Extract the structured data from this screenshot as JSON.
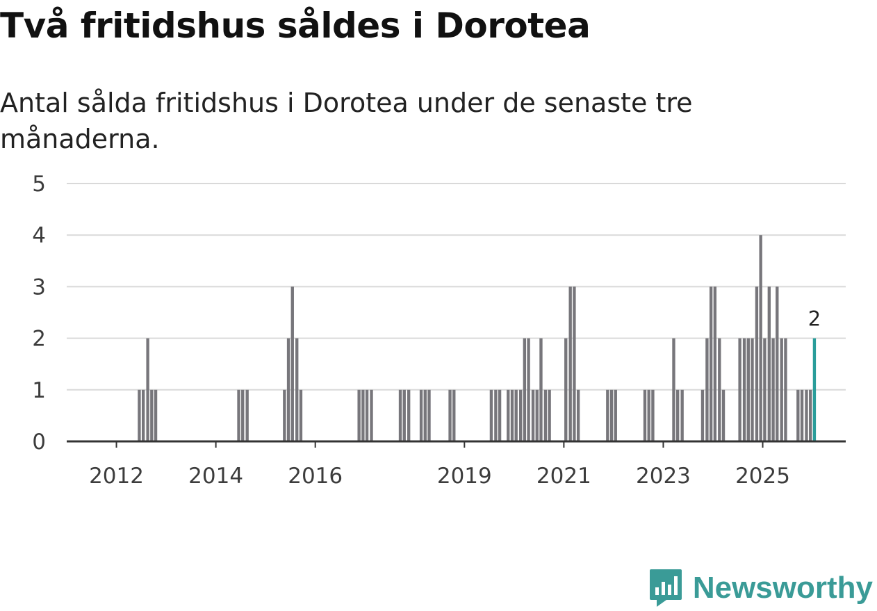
{
  "title": "Två fritidshus såldes i Dorotea",
  "subtitle": "Antal sålda fritidshus i Dorotea under de senaste tre månaderna.",
  "brand": {
    "name": "Newsworthy",
    "color": "#3a9b97"
  },
  "chart_data": {
    "type": "bar",
    "title": "Två fritidshus såldes i Dorotea",
    "ylabel": "",
    "xlabel": "",
    "ylim": [
      0,
      5
    ],
    "yticks": [
      0,
      1,
      2,
      3,
      4,
      5
    ],
    "xlim": [
      2011.0,
      2026.67
    ],
    "xticks": [
      {
        "label": "2012",
        "year": 2012
      },
      {
        "label": "2014",
        "year": 2014
      },
      {
        "label": "2016",
        "year": 2016
      },
      {
        "label": "2019",
        "year": 2019
      },
      {
        "label": "2021",
        "year": 2021
      },
      {
        "label": "2023",
        "year": 2023
      },
      {
        "label": "2025",
        "year": 2025
      }
    ],
    "bar_color": "#77767b",
    "highlight_color": "#2a9d9a",
    "highlight_label": "2",
    "bars": [
      {
        "t": 2012.46,
        "v": 1
      },
      {
        "t": 2012.54,
        "v": 1
      },
      {
        "t": 2012.63,
        "v": 2
      },
      {
        "t": 2012.71,
        "v": 1
      },
      {
        "t": 2012.79,
        "v": 1
      },
      {
        "t": 2014.46,
        "v": 1
      },
      {
        "t": 2014.54,
        "v": 1
      },
      {
        "t": 2014.63,
        "v": 1
      },
      {
        "t": 2015.38,
        "v": 1
      },
      {
        "t": 2015.46,
        "v": 2
      },
      {
        "t": 2015.54,
        "v": 3
      },
      {
        "t": 2015.63,
        "v": 2
      },
      {
        "t": 2015.71,
        "v": 1
      },
      {
        "t": 2016.88,
        "v": 1
      },
      {
        "t": 2016.96,
        "v": 1
      },
      {
        "t": 2017.04,
        "v": 1
      },
      {
        "t": 2017.13,
        "v": 1
      },
      {
        "t": 2017.71,
        "v": 1
      },
      {
        "t": 2017.79,
        "v": 1
      },
      {
        "t": 2017.88,
        "v": 1
      },
      {
        "t": 2018.13,
        "v": 1
      },
      {
        "t": 2018.21,
        "v": 1
      },
      {
        "t": 2018.29,
        "v": 1
      },
      {
        "t": 2018.71,
        "v": 1
      },
      {
        "t": 2018.79,
        "v": 1
      },
      {
        "t": 2019.54,
        "v": 1
      },
      {
        "t": 2019.63,
        "v": 1
      },
      {
        "t": 2019.71,
        "v": 1
      },
      {
        "t": 2019.88,
        "v": 1
      },
      {
        "t": 2019.96,
        "v": 1
      },
      {
        "t": 2020.04,
        "v": 1
      },
      {
        "t": 2020.13,
        "v": 1
      },
      {
        "t": 2020.21,
        "v": 2
      },
      {
        "t": 2020.29,
        "v": 2
      },
      {
        "t": 2020.38,
        "v": 1
      },
      {
        "t": 2020.46,
        "v": 1
      },
      {
        "t": 2020.54,
        "v": 2
      },
      {
        "t": 2020.63,
        "v": 1
      },
      {
        "t": 2020.71,
        "v": 1
      },
      {
        "t": 2021.04,
        "v": 2
      },
      {
        "t": 2021.13,
        "v": 3
      },
      {
        "t": 2021.21,
        "v": 3
      },
      {
        "t": 2021.29,
        "v": 1
      },
      {
        "t": 2021.88,
        "v": 1
      },
      {
        "t": 2021.96,
        "v": 1
      },
      {
        "t": 2022.04,
        "v": 1
      },
      {
        "t": 2022.63,
        "v": 1
      },
      {
        "t": 2022.71,
        "v": 1
      },
      {
        "t": 2022.79,
        "v": 1
      },
      {
        "t": 2023.21,
        "v": 2
      },
      {
        "t": 2023.29,
        "v": 1
      },
      {
        "t": 2023.38,
        "v": 1
      },
      {
        "t": 2023.79,
        "v": 1
      },
      {
        "t": 2023.88,
        "v": 2
      },
      {
        "t": 2023.96,
        "v": 3
      },
      {
        "t": 2024.04,
        "v": 3
      },
      {
        "t": 2024.13,
        "v": 2
      },
      {
        "t": 2024.21,
        "v": 1
      },
      {
        "t": 2024.54,
        "v": 2
      },
      {
        "t": 2024.63,
        "v": 2
      },
      {
        "t": 2024.71,
        "v": 2
      },
      {
        "t": 2024.79,
        "v": 2
      },
      {
        "t": 2024.88,
        "v": 3
      },
      {
        "t": 2024.96,
        "v": 4
      },
      {
        "t": 2025.04,
        "v": 2
      },
      {
        "t": 2025.13,
        "v": 3
      },
      {
        "t": 2025.21,
        "v": 2
      },
      {
        "t": 2025.29,
        "v": 3
      },
      {
        "t": 2025.38,
        "v": 2
      },
      {
        "t": 2025.46,
        "v": 2
      },
      {
        "t": 2025.71,
        "v": 1
      },
      {
        "t": 2025.79,
        "v": 1
      },
      {
        "t": 2025.88,
        "v": 1
      },
      {
        "t": 2025.96,
        "v": 1
      },
      {
        "t": 2026.04,
        "v": 2,
        "highlight": true
      }
    ]
  }
}
